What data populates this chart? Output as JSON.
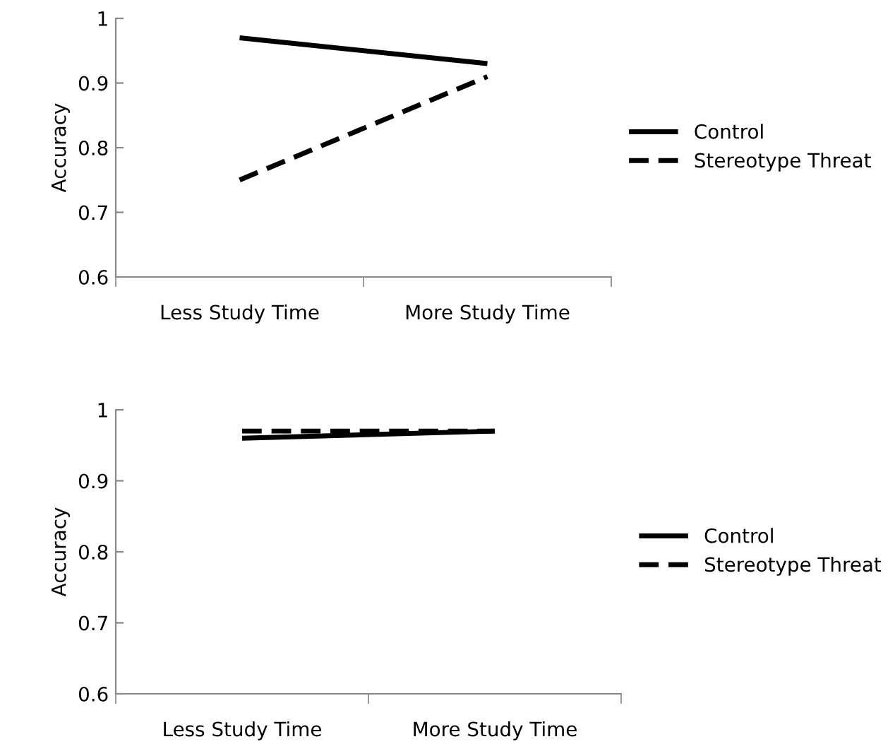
{
  "chart_data": [
    {
      "type": "line",
      "ylabel": "Accuracy",
      "categories": [
        "Less Study Time",
        "More Study Time"
      ],
      "series": [
        {
          "name": "Control",
          "color": "#000000",
          "values": [
            0.97,
            0.93
          ],
          "line_style": "solid"
        },
        {
          "name": "Stereotype Threat",
          "color": "#000000",
          "values": [
            0.75,
            0.91
          ],
          "line_style": "dashed"
        }
      ],
      "ylim": [
        0.6,
        1
      ],
      "yticks": [
        0.6,
        0.7,
        0.8,
        0.9,
        1
      ],
      "grid": false,
      "legend": "right",
      "marker": "none"
    },
    {
      "type": "line",
      "ylabel": "Accuracy",
      "categories": [
        "Less Study Time",
        "More Study Time"
      ],
      "series": [
        {
          "name": "Control",
          "color": "#000000",
          "values": [
            0.96,
            0.97
          ],
          "line_style": "solid"
        },
        {
          "name": "Stereotype Threat",
          "color": "#000000",
          "values": [
            0.97,
            0.97
          ],
          "line_style": "dashed"
        }
      ],
      "ylim": [
        0.6,
        1
      ],
      "yticks": [
        0.6,
        0.7,
        0.8,
        0.9,
        1
      ],
      "grid": false,
      "legend": "right",
      "marker": "none"
    }
  ]
}
